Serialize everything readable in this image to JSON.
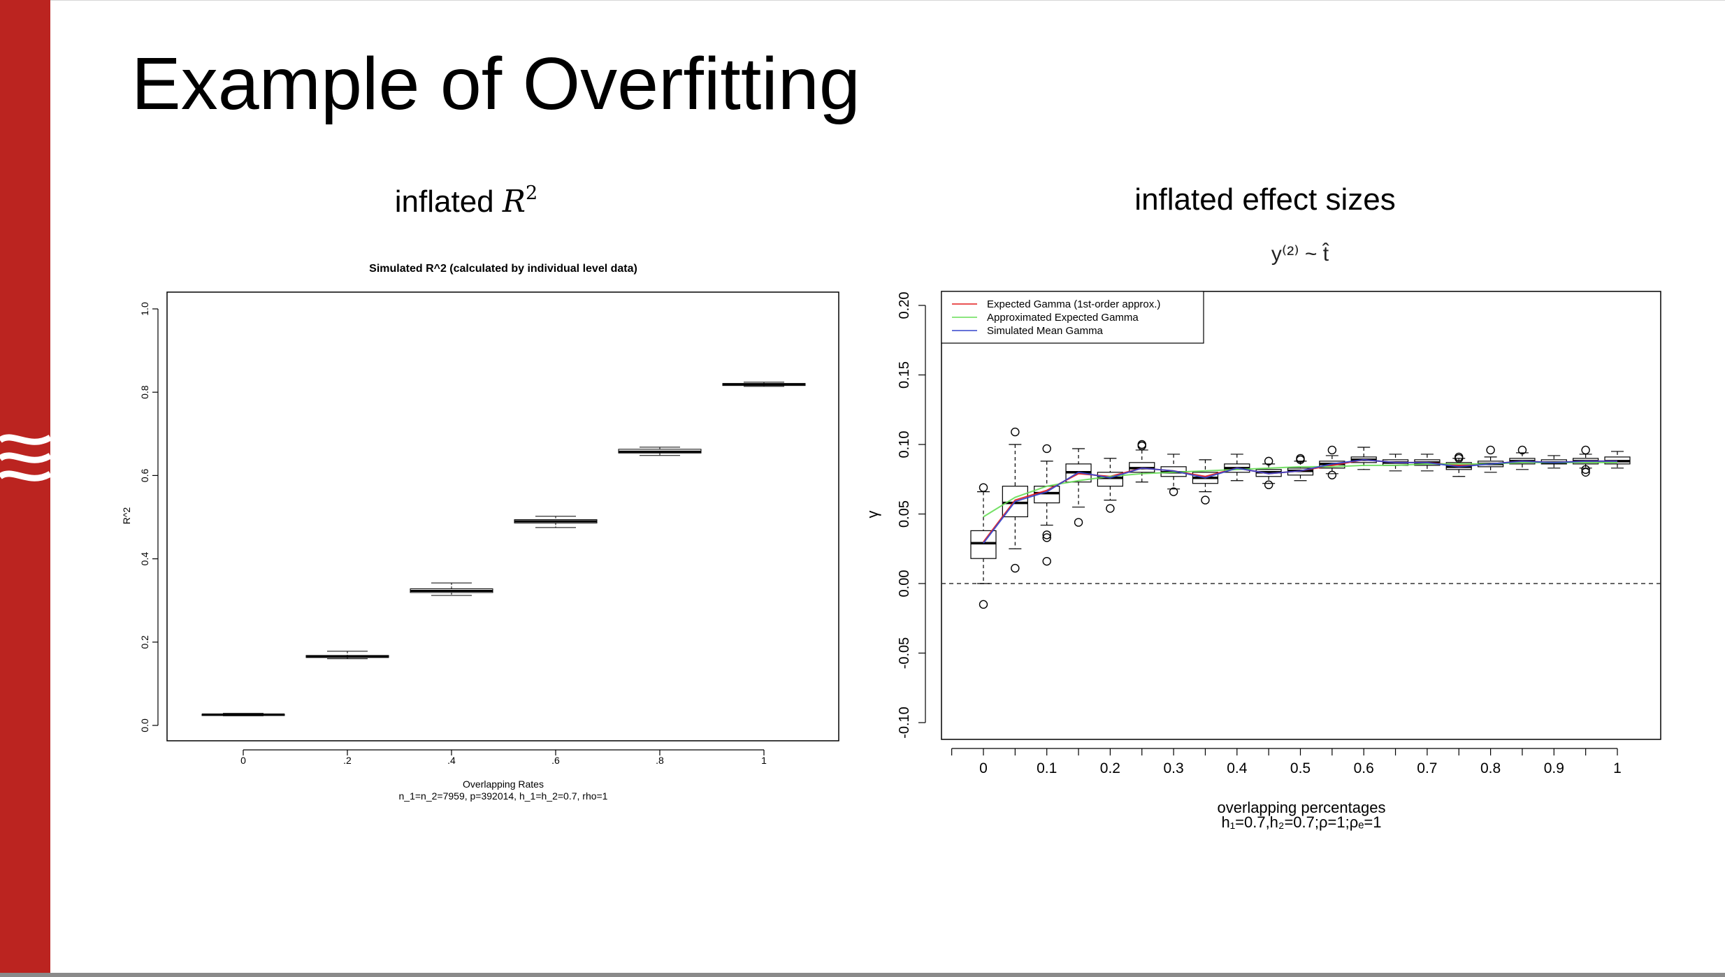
{
  "slide": {
    "title": "Example of Overfitting",
    "left_heading": "inflated",
    "left_heading_math": "R",
    "left_heading_sup": "2",
    "right_heading": "inflated effect sizes"
  },
  "colors": {
    "sidebar": "#bb2420",
    "expected_gamma": "#e41a1c",
    "approx_gamma": "#66dd55",
    "simulated_gamma": "#3344cc"
  },
  "chart_data": [
    {
      "type": "boxplot",
      "title": "Simulated R^2 (calculated by individual level data)",
      "xlabel": "Overlapping Rates",
      "xlabel2": "n_1=n_2=7959, p=392014, h_1=h_2=0.7, rho=1",
      "ylabel": "R^2",
      "ylim": [
        0,
        1
      ],
      "yticks": [
        "0.0",
        "0.2",
        "0.4",
        "0.6",
        "0.8",
        "1.0"
      ],
      "categories": [
        "0",
        ".2",
        ".4",
        ".6",
        ".8",
        "1"
      ],
      "boxes": [
        {
          "x": 0,
          "min": 0.023,
          "q1": 0.025,
          "med": 0.026,
          "q3": 0.027,
          "max": 0.029
        },
        {
          "x": 0.2,
          "min": 0.16,
          "q1": 0.163,
          "med": 0.165,
          "q3": 0.168,
          "max": 0.178
        },
        {
          "x": 0.4,
          "min": 0.312,
          "q1": 0.319,
          "med": 0.323,
          "q3": 0.328,
          "max": 0.342
        },
        {
          "x": 0.6,
          "min": 0.475,
          "q1": 0.486,
          "med": 0.49,
          "q3": 0.494,
          "max": 0.502
        },
        {
          "x": 0.8,
          "min": 0.648,
          "q1": 0.654,
          "med": 0.657,
          "q3": 0.663,
          "max": 0.668
        },
        {
          "x": 1.0,
          "min": 0.814,
          "q1": 0.816,
          "med": 0.819,
          "q3": 0.821,
          "max": 0.824
        }
      ]
    },
    {
      "type": "boxplot",
      "title": "y⁽²⁾ ~ t̂",
      "xlabel": "overlapping percentages",
      "xlabel2": "h₁=0.7,h₂=0.7;ρ=1;ρₑ=1",
      "ylabel": "γ",
      "ylim": [
        -0.1,
        0.2
      ],
      "yticks": [
        "-0.10",
        "-0.05",
        "0.00",
        "0.05",
        "0.10",
        "0.15",
        "0.20"
      ],
      "xticks": [
        "0",
        "0.1",
        "0.2",
        "0.3",
        "0.4",
        "0.5",
        "0.6",
        "0.7",
        "0.8",
        "0.9",
        "1"
      ],
      "reference_line": 0,
      "legend_position": "top-left",
      "legend": [
        "Expected Gamma (1st-order approx.)",
        "Approximated Expected Gamma",
        "Simulated Mean Gamma"
      ],
      "boxes": [
        {
          "x": 0,
          "min": 0.0,
          "q1": 0.018,
          "med": 0.029,
          "q3": 0.038,
          "max": 0.066,
          "out": [
            0.069,
            -0.015
          ]
        },
        {
          "x": 0.05,
          "min": 0.025,
          "q1": 0.048,
          "med": 0.058,
          "q3": 0.07,
          "max": 0.1,
          "out": [
            0.109,
            0.011
          ]
        },
        {
          "x": 0.1,
          "min": 0.042,
          "q1": 0.058,
          "med": 0.065,
          "q3": 0.07,
          "max": 0.088,
          "out": [
            0.097,
            0.035,
            0.033,
            0.016
          ]
        },
        {
          "x": 0.15,
          "min": 0.055,
          "q1": 0.073,
          "med": 0.08,
          "q3": 0.086,
          "max": 0.097,
          "out": [
            0.044
          ]
        },
        {
          "x": 0.2,
          "min": 0.06,
          "q1": 0.07,
          "med": 0.076,
          "q3": 0.08,
          "max": 0.09,
          "out": [
            0.054
          ]
        },
        {
          "x": 0.25,
          "min": 0.073,
          "q1": 0.08,
          "med": 0.083,
          "q3": 0.087,
          "max": 0.096,
          "out": [
            0.099,
            0.1
          ]
        },
        {
          "x": 0.3,
          "min": 0.068,
          "q1": 0.077,
          "med": 0.08,
          "q3": 0.084,
          "max": 0.093,
          "out": [
            0.066
          ]
        },
        {
          "x": 0.35,
          "min": 0.066,
          "q1": 0.072,
          "med": 0.076,
          "q3": 0.08,
          "max": 0.089,
          "out": [
            0.06
          ]
        },
        {
          "x": 0.4,
          "min": 0.074,
          "q1": 0.08,
          "med": 0.083,
          "q3": 0.086,
          "max": 0.093,
          "out": []
        },
        {
          "x": 0.45,
          "min": 0.072,
          "q1": 0.077,
          "med": 0.08,
          "q3": 0.082,
          "max": 0.086,
          "out": [
            0.088,
            0.071
          ]
        },
        {
          "x": 0.5,
          "min": 0.074,
          "q1": 0.078,
          "med": 0.081,
          "q3": 0.083,
          "max": 0.088,
          "out": [
            0.09,
            0.089
          ]
        },
        {
          "x": 0.55,
          "min": 0.079,
          "q1": 0.083,
          "med": 0.086,
          "q3": 0.088,
          "max": 0.092,
          "out": [
            0.096,
            0.078
          ]
        },
        {
          "x": 0.6,
          "min": 0.082,
          "q1": 0.087,
          "med": 0.089,
          "q3": 0.091,
          "max": 0.098,
          "out": []
        },
        {
          "x": 0.65,
          "min": 0.081,
          "q1": 0.085,
          "med": 0.087,
          "q3": 0.089,
          "max": 0.093,
          "out": []
        },
        {
          "x": 0.7,
          "min": 0.081,
          "q1": 0.085,
          "med": 0.087,
          "q3": 0.089,
          "max": 0.093,
          "out": []
        },
        {
          "x": 0.75,
          "min": 0.077,
          "q1": 0.082,
          "med": 0.084,
          "q3": 0.087,
          "max": 0.09,
          "out": [
            0.091,
            0.09
          ]
        },
        {
          "x": 0.8,
          "min": 0.08,
          "q1": 0.084,
          "med": 0.086,
          "q3": 0.088,
          "max": 0.091,
          "out": [
            0.096
          ]
        },
        {
          "x": 0.85,
          "min": 0.082,
          "q1": 0.086,
          "med": 0.088,
          "q3": 0.09,
          "max": 0.094,
          "out": [
            0.096
          ]
        },
        {
          "x": 0.9,
          "min": 0.083,
          "q1": 0.086,
          "med": 0.087,
          "q3": 0.089,
          "max": 0.092,
          "out": []
        },
        {
          "x": 0.95,
          "min": 0.083,
          "q1": 0.086,
          "med": 0.088,
          "q3": 0.09,
          "max": 0.093,
          "out": [
            0.096,
            0.082,
            0.08
          ]
        },
        {
          "x": 1.0,
          "min": 0.083,
          "q1": 0.086,
          "med": 0.088,
          "q3": 0.091,
          "max": 0.095,
          "out": []
        }
      ],
      "series": [
        {
          "name": "Expected Gamma (1st-order approx.)",
          "color": "#e41a1c",
          "x": [
            0,
            0.05,
            0.1,
            0.15,
            0.2,
            0.25,
            0.3,
            0.35,
            0.4,
            0.45,
            0.5,
            0.55,
            0.6,
            0.65,
            0.7,
            0.75,
            0.8,
            0.85,
            0.9,
            0.95,
            1.0
          ],
          "y": [
            0.03,
            0.06,
            0.067,
            0.079,
            0.077,
            0.083,
            0.081,
            0.077,
            0.083,
            0.079,
            0.081,
            0.085,
            0.089,
            0.087,
            0.087,
            0.085,
            0.086,
            0.088,
            0.087,
            0.088,
            0.088
          ]
        },
        {
          "name": "Approximated Expected Gamma",
          "color": "#66dd55",
          "x": [
            0,
            0.05,
            0.1,
            0.15,
            0.2,
            0.25,
            0.3,
            0.35,
            0.4,
            0.45,
            0.5,
            0.55,
            0.6,
            0.65,
            0.7,
            0.75,
            0.8,
            0.85,
            0.9,
            0.95,
            1.0
          ],
          "y": [
            0.048,
            0.062,
            0.07,
            0.074,
            0.077,
            0.079,
            0.08,
            0.081,
            0.082,
            0.083,
            0.084,
            0.084,
            0.085,
            0.085,
            0.086,
            0.086,
            0.086,
            0.087,
            0.087,
            0.087,
            0.087
          ]
        },
        {
          "name": "Simulated Mean Gamma",
          "color": "#3344cc",
          "x": [
            0,
            0.05,
            0.1,
            0.15,
            0.2,
            0.25,
            0.3,
            0.35,
            0.4,
            0.45,
            0.5,
            0.55,
            0.6,
            0.65,
            0.7,
            0.75,
            0.8,
            0.85,
            0.9,
            0.95,
            1.0
          ],
          "y": [
            0.029,
            0.059,
            0.066,
            0.08,
            0.076,
            0.083,
            0.081,
            0.076,
            0.083,
            0.079,
            0.081,
            0.086,
            0.089,
            0.087,
            0.087,
            0.084,
            0.086,
            0.088,
            0.087,
            0.088,
            0.088
          ]
        }
      ]
    }
  ]
}
